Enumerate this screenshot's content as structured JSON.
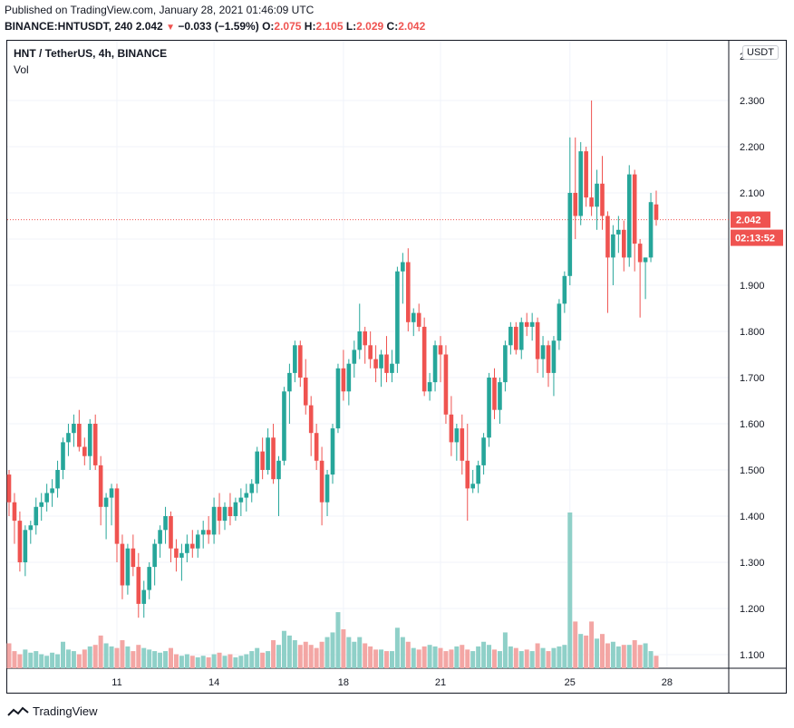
{
  "header": {
    "published": "Published on TradingView.com, January 28, 2021 01:46:09 UTC",
    "symbol_line": "BINANCE:HNTUSDT, 240",
    "change_value": "2.042",
    "change_arrow": "▼",
    "change_text": "−0.033 (−1.59%)",
    "o_label": "O:",
    "o_value": "2.075",
    "h_label": "H:",
    "h_value": "2.105",
    "l_label": "L:",
    "l_value": "2.029",
    "c_label": "C:",
    "c_value": "2.042"
  },
  "legend": {
    "title": "HNT / TetherUS, 4h, BINANCE",
    "volume": "Vol"
  },
  "currency_button": "USDT",
  "footer": {
    "brand": "TradingView"
  },
  "colors": {
    "up": "#26a69a",
    "down": "#ef5350",
    "vol_up": "#8fd0c8",
    "vol_down": "#f3a6a4",
    "grid": "#f0f3fa",
    "text": "#131722"
  },
  "chart_data": {
    "type": "candlestick",
    "y_range": [
      1.07,
      2.41
    ],
    "y_ticks": [
      "1.100",
      "1.200",
      "1.300",
      "1.400",
      "1.500",
      "1.600",
      "1.700",
      "1.800",
      "1.900",
      "2.000",
      "2.100",
      "2.200",
      "2.300"
    ],
    "top_partial_tick": "2",
    "x_ticks": [
      {
        "label": "11",
        "index": 20
      },
      {
        "label": "14",
        "index": 38
      },
      {
        "label": "18",
        "index": 62
      },
      {
        "label": "21",
        "index": 80
      },
      {
        "label": "25",
        "index": 104
      },
      {
        "label": "28",
        "index": 122
      }
    ],
    "last_price_label": "2.042",
    "countdown_label": "02:13:52",
    "last_price": 2.042,
    "candles": [
      [
        1.49,
        1.5,
        1.4,
        1.43,
        0.32
      ],
      [
        1.43,
        1.45,
        1.34,
        1.39,
        0.22
      ],
      [
        1.39,
        1.41,
        1.28,
        1.3,
        0.18
      ],
      [
        1.3,
        1.38,
        1.27,
        1.37,
        0.24
      ],
      [
        1.37,
        1.39,
        1.34,
        1.38,
        0.2
      ],
      [
        1.38,
        1.44,
        1.36,
        1.42,
        0.22
      ],
      [
        1.42,
        1.45,
        1.39,
        1.43,
        0.18
      ],
      [
        1.43,
        1.47,
        1.41,
        1.45,
        0.16
      ],
      [
        1.45,
        1.48,
        1.42,
        1.46,
        0.2
      ],
      [
        1.46,
        1.52,
        1.44,
        1.5,
        0.18
      ],
      [
        1.5,
        1.57,
        1.48,
        1.56,
        0.34
      ],
      [
        1.56,
        1.6,
        1.53,
        1.58,
        0.24
      ],
      [
        1.58,
        1.62,
        1.55,
        1.6,
        0.22
      ],
      [
        1.6,
        1.63,
        1.54,
        1.55,
        0.18
      ],
      [
        1.55,
        1.57,
        1.51,
        1.53,
        0.24
      ],
      [
        1.53,
        1.61,
        1.5,
        1.6,
        0.28
      ],
      [
        1.6,
        1.62,
        1.5,
        1.51,
        0.3
      ],
      [
        1.51,
        1.53,
        1.38,
        1.42,
        0.42
      ],
      [
        1.42,
        1.45,
        1.35,
        1.44,
        0.32
      ],
      [
        1.44,
        1.47,
        1.38,
        1.46,
        0.28
      ],
      [
        1.46,
        1.47,
        1.3,
        1.34,
        0.26
      ],
      [
        1.34,
        1.36,
        1.22,
        1.25,
        0.36
      ],
      [
        1.25,
        1.34,
        1.23,
        1.33,
        0.28
      ],
      [
        1.33,
        1.36,
        1.27,
        1.29,
        0.22
      ],
      [
        1.29,
        1.32,
        1.18,
        1.21,
        0.3
      ],
      [
        1.21,
        1.26,
        1.18,
        1.24,
        0.26
      ],
      [
        1.24,
        1.3,
        1.22,
        1.29,
        0.24
      ],
      [
        1.29,
        1.35,
        1.25,
        1.34,
        0.22
      ],
      [
        1.34,
        1.38,
        1.31,
        1.37,
        0.2
      ],
      [
        1.37,
        1.42,
        1.34,
        1.4,
        0.22
      ],
      [
        1.4,
        1.41,
        1.3,
        1.33,
        0.26
      ],
      [
        1.33,
        1.35,
        1.28,
        1.31,
        0.18
      ],
      [
        1.31,
        1.34,
        1.26,
        1.32,
        0.16
      ],
      [
        1.32,
        1.36,
        1.3,
        1.34,
        0.18
      ],
      [
        1.34,
        1.37,
        1.31,
        1.33,
        0.16
      ],
      [
        1.33,
        1.37,
        1.31,
        1.36,
        0.14
      ],
      [
        1.36,
        1.39,
        1.33,
        1.37,
        0.16
      ],
      [
        1.37,
        1.4,
        1.34,
        1.36,
        0.14
      ],
      [
        1.36,
        1.44,
        1.34,
        1.42,
        0.18
      ],
      [
        1.42,
        1.45,
        1.36,
        1.39,
        0.2
      ],
      [
        1.39,
        1.43,
        1.37,
        1.42,
        0.16
      ],
      [
        1.42,
        1.45,
        1.38,
        1.4,
        0.18
      ],
      [
        1.4,
        1.44,
        1.39,
        1.43,
        0.14
      ],
      [
        1.43,
        1.46,
        1.4,
        1.44,
        0.16
      ],
      [
        1.44,
        1.47,
        1.41,
        1.45,
        0.18
      ],
      [
        1.45,
        1.48,
        1.43,
        1.47,
        0.22
      ],
      [
        1.47,
        1.55,
        1.45,
        1.54,
        0.26
      ],
      [
        1.54,
        1.57,
        1.48,
        1.5,
        0.2
      ],
      [
        1.5,
        1.59,
        1.49,
        1.57,
        0.22
      ],
      [
        1.57,
        1.6,
        1.47,
        1.48,
        0.36
      ],
      [
        1.48,
        1.53,
        1.4,
        1.52,
        0.3
      ],
      [
        1.52,
        1.68,
        1.51,
        1.67,
        0.48
      ],
      [
        1.67,
        1.73,
        1.6,
        1.71,
        0.42
      ],
      [
        1.71,
        1.78,
        1.69,
        1.77,
        0.36
      ],
      [
        1.77,
        1.78,
        1.68,
        1.7,
        0.3
      ],
      [
        1.7,
        1.74,
        1.62,
        1.64,
        0.34
      ],
      [
        1.64,
        1.66,
        1.53,
        1.58,
        0.3
      ],
      [
        1.58,
        1.6,
        1.5,
        1.52,
        0.26
      ],
      [
        1.52,
        1.55,
        1.38,
        1.43,
        0.34
      ],
      [
        1.43,
        1.5,
        1.4,
        1.49,
        0.4
      ],
      [
        1.49,
        1.6,
        1.47,
        1.59,
        0.46
      ],
      [
        1.59,
        1.73,
        1.58,
        1.72,
        0.72
      ],
      [
        1.72,
        1.76,
        1.65,
        1.67,
        0.5
      ],
      [
        1.67,
        1.74,
        1.64,
        1.73,
        0.4
      ],
      [
        1.73,
        1.78,
        1.7,
        1.76,
        0.34
      ],
      [
        1.76,
        1.86,
        1.74,
        1.8,
        0.4
      ],
      [
        1.8,
        1.81,
        1.73,
        1.77,
        0.32
      ],
      [
        1.77,
        1.8,
        1.72,
        1.74,
        0.28
      ],
      [
        1.74,
        1.77,
        1.69,
        1.72,
        0.24
      ],
      [
        1.72,
        1.76,
        1.68,
        1.75,
        0.24
      ],
      [
        1.75,
        1.79,
        1.69,
        1.71,
        0.22
      ],
      [
        1.71,
        1.76,
        1.69,
        1.73,
        0.22
      ],
      [
        1.73,
        1.94,
        1.71,
        1.93,
        0.52
      ],
      [
        1.93,
        1.97,
        1.86,
        1.95,
        0.4
      ],
      [
        1.95,
        1.98,
        1.8,
        1.82,
        0.34
      ],
      [
        1.82,
        1.85,
        1.79,
        1.84,
        0.26
      ],
      [
        1.84,
        1.86,
        1.8,
        1.81,
        0.24
      ],
      [
        1.81,
        1.83,
        1.66,
        1.67,
        0.28
      ],
      [
        1.67,
        1.71,
        1.65,
        1.69,
        0.3
      ],
      [
        1.69,
        1.78,
        1.67,
        1.77,
        0.28
      ],
      [
        1.77,
        1.79,
        1.69,
        1.75,
        0.26
      ],
      [
        1.75,
        1.77,
        1.6,
        1.62,
        0.22
      ],
      [
        1.62,
        1.66,
        1.53,
        1.56,
        0.24
      ],
      [
        1.56,
        1.6,
        1.52,
        1.59,
        0.28
      ],
      [
        1.59,
        1.62,
        1.49,
        1.52,
        0.3
      ],
      [
        1.52,
        1.6,
        1.39,
        1.46,
        0.24
      ],
      [
        1.46,
        1.5,
        1.45,
        1.47,
        0.22
      ],
      [
        1.47,
        1.52,
        1.45,
        1.51,
        0.28
      ],
      [
        1.51,
        1.58,
        1.49,
        1.57,
        0.34
      ],
      [
        1.57,
        1.71,
        1.55,
        1.7,
        0.3
      ],
      [
        1.7,
        1.72,
        1.61,
        1.63,
        0.24
      ],
      [
        1.63,
        1.7,
        1.6,
        1.69,
        0.22
      ],
      [
        1.69,
        1.78,
        1.67,
        1.77,
        0.46
      ],
      [
        1.77,
        1.82,
        1.75,
        1.81,
        0.28
      ],
      [
        1.81,
        1.82,
        1.75,
        1.76,
        0.26
      ],
      [
        1.76,
        1.83,
        1.74,
        1.82,
        0.22
      ],
      [
        1.82,
        1.84,
        1.79,
        1.81,
        0.24
      ],
      [
        1.81,
        1.84,
        1.78,
        1.82,
        0.22
      ],
      [
        1.82,
        1.83,
        1.71,
        1.74,
        0.32
      ],
      [
        1.74,
        1.79,
        1.7,
        1.77,
        0.26
      ],
      [
        1.77,
        1.78,
        1.68,
        1.71,
        0.22
      ],
      [
        1.71,
        1.79,
        1.66,
        1.78,
        0.26
      ],
      [
        1.78,
        1.87,
        1.76,
        1.86,
        0.28
      ],
      [
        1.86,
        1.93,
        1.84,
        1.92,
        0.3
      ],
      [
        1.92,
        2.22,
        1.9,
        2.1,
        2.0
      ],
      [
        2.1,
        2.22,
        2.0,
        2.05,
        0.6
      ],
      [
        2.05,
        2.21,
        2.03,
        2.19,
        0.44
      ],
      [
        2.19,
        2.2,
        2.07,
        2.09,
        0.42
      ],
      [
        2.09,
        2.3,
        2.05,
        2.07,
        0.6
      ],
      [
        2.07,
        2.15,
        2.02,
        2.12,
        0.38
      ],
      [
        2.12,
        2.18,
        2.02,
        2.05,
        0.44
      ],
      [
        2.05,
        2.06,
        1.84,
        1.96,
        0.32
      ],
      [
        1.96,
        2.03,
        1.9,
        2.01,
        0.34
      ],
      [
        2.01,
        2.05,
        1.97,
        2.02,
        0.28
      ],
      [
        2.02,
        2.04,
        1.93,
        1.96,
        0.3
      ],
      [
        1.96,
        2.16,
        1.94,
        2.14,
        0.3
      ],
      [
        2.14,
        2.15,
        1.93,
        1.99,
        0.36
      ],
      [
        1.99,
        2.0,
        1.83,
        1.95,
        0.3
      ],
      [
        1.95,
        1.96,
        1.87,
        1.96,
        0.32
      ],
      [
        1.96,
        2.1,
        1.95,
        2.08,
        0.22
      ],
      [
        2.075,
        2.105,
        2.029,
        2.042,
        0.16
      ]
    ]
  }
}
